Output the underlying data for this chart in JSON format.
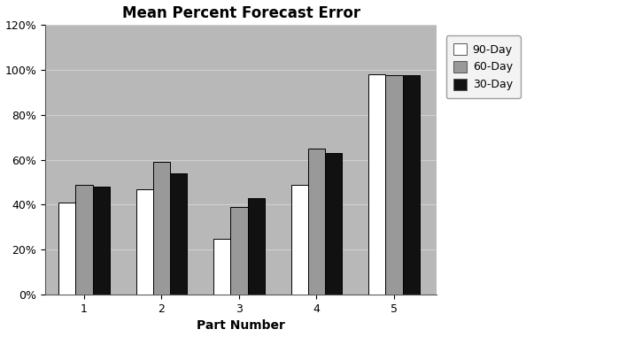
{
  "title": "Mean Percent Forecast Error",
  "xlabel": "Part Number",
  "categories": [
    "1",
    "2",
    "3",
    "4",
    "5"
  ],
  "series": {
    "90-Day": [
      0.41,
      0.47,
      0.25,
      0.49,
      0.98
    ],
    "60-Day": [
      0.49,
      0.59,
      0.39,
      0.65,
      0.975
    ],
    "30-Day": [
      0.48,
      0.54,
      0.43,
      0.63,
      0.975
    ]
  },
  "colors": {
    "90-Day": "#ffffff",
    "60-Day": "#999999",
    "30-Day": "#111111"
  },
  "ylim": [
    0,
    1.2
  ],
  "yticks": [
    0.0,
    0.2,
    0.4,
    0.6,
    0.8,
    1.0,
    1.2
  ],
  "ytick_labels": [
    "0%",
    "20%",
    "40%",
    "60%",
    "80%",
    "100%",
    "120%"
  ],
  "figure_bg": "#ffffff",
  "plot_bg": "#b8b8b8",
  "legend_bg": "#f0f0f0",
  "title_fontsize": 12,
  "axis_label_fontsize": 10,
  "tick_fontsize": 9,
  "legend_fontsize": 9,
  "bar_width": 0.22,
  "grid_color": "#d0d0d0",
  "bar_edge_color": "#000000"
}
